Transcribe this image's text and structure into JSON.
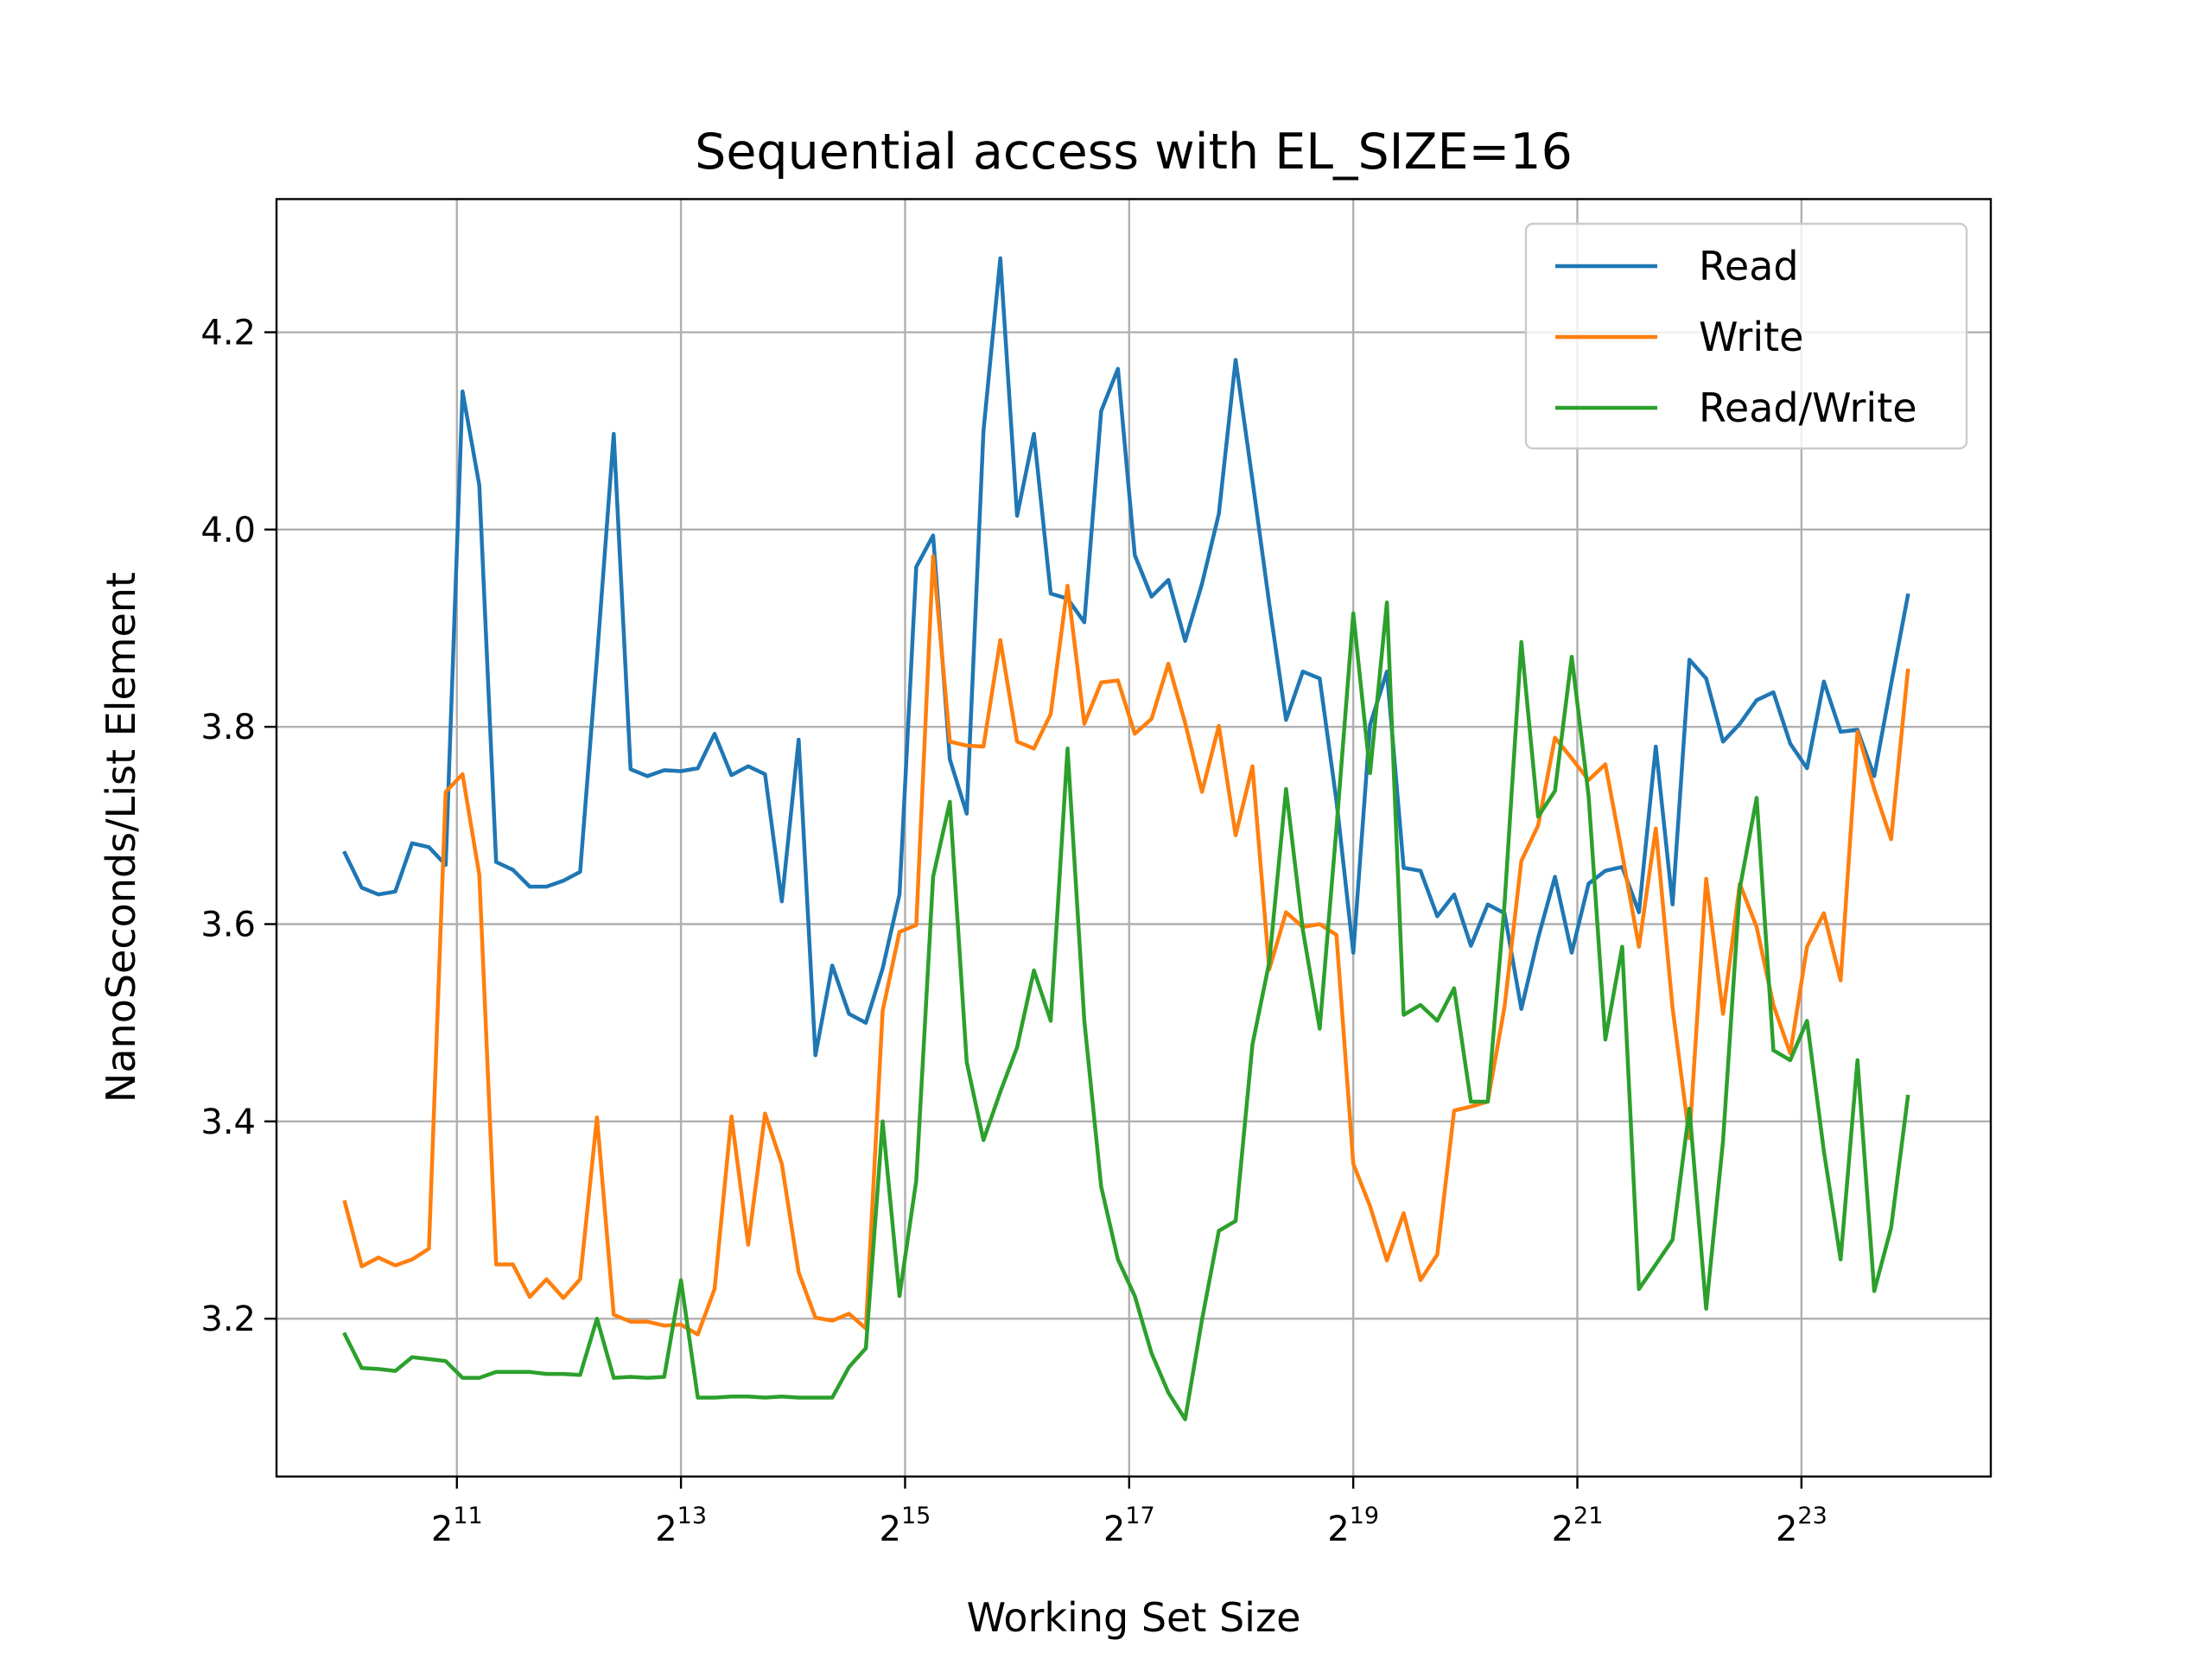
{
  "chart_data": {
    "type": "line",
    "title": "Sequential access with EL_SIZE=16",
    "xlabel": "Working Set Size",
    "ylabel": "NanoSeconds/List Element",
    "x_scale": "log2",
    "x_range_log2": [
      9.39,
      24.69
    ],
    "ylim": [
      3.04,
      4.335
    ],
    "x_ticks": [
      {
        "base": "2",
        "exp": "11",
        "log2": 11
      },
      {
        "base": "2",
        "exp": "13",
        "log2": 13
      },
      {
        "base": "2",
        "exp": "15",
        "log2": 15
      },
      {
        "base": "2",
        "exp": "17",
        "log2": 17
      },
      {
        "base": "2",
        "exp": "19",
        "log2": 19
      },
      {
        "base": "2",
        "exp": "21",
        "log2": 21
      },
      {
        "base": "2",
        "exp": "23",
        "log2": 23
      }
    ],
    "y_ticks": [
      {
        "label": "3.2",
        "value": 3.2
      },
      {
        "label": "3.4",
        "value": 3.4
      },
      {
        "label": "3.6",
        "value": 3.6
      },
      {
        "label": "3.8",
        "value": 3.8
      },
      {
        "label": "4.0",
        "value": 4.0
      },
      {
        "label": "4.2",
        "value": 4.2
      }
    ],
    "grid": true,
    "legend_position": "top-right",
    "x_log2": [
      10.0,
      10.15,
      10.3,
      10.45,
      10.6,
      10.75,
      10.9,
      11.05,
      11.2,
      11.35,
      11.5,
      11.65,
      11.8,
      11.95,
      12.1,
      12.25,
      12.4,
      12.55,
      12.7,
      12.85,
      13.0,
      13.15,
      13.3,
      13.45,
      13.6,
      13.75,
      13.9,
      14.05,
      14.2,
      14.35,
      14.5,
      14.65,
      14.8,
      14.95,
      15.1,
      15.25,
      15.4,
      15.55,
      15.7,
      15.85,
      16.0,
      16.15,
      16.3,
      16.45,
      16.6,
      16.75,
      16.9,
      17.05,
      17.2,
      17.35,
      17.5,
      17.65,
      17.8,
      17.95,
      18.1,
      18.25,
      18.4,
      18.55,
      18.7,
      18.85,
      19.0,
      19.15,
      19.3,
      19.45,
      19.6,
      19.75,
      19.9,
      20.05,
      20.2,
      20.35,
      20.5,
      20.65,
      20.8,
      20.95,
      21.1,
      21.25,
      21.4,
      21.55,
      21.7,
      21.85,
      22.0,
      22.15,
      22.3,
      22.45,
      22.6,
      22.75,
      22.9,
      23.05,
      23.2,
      23.35,
      23.5,
      23.65,
      23.8,
      23.95
    ],
    "series": [
      {
        "name": "Read",
        "color": "#1f77b4",
        "values": [
          3.672,
          3.637,
          3.63,
          3.633,
          3.682,
          3.678,
          3.66,
          4.14,
          4.045,
          3.663,
          3.655,
          3.638,
          3.638,
          3.644,
          3.653,
          3.87,
          4.097,
          3.757,
          3.75,
          3.756,
          3.755,
          3.758,
          3.793,
          3.751,
          3.76,
          3.752,
          3.623,
          3.787,
          3.467,
          3.558,
          3.509,
          3.5,
          3.555,
          3.63,
          3.962,
          3.994,
          3.767,
          3.712,
          4.1,
          4.275,
          4.014,
          4.097,
          3.935,
          3.93,
          3.906,
          4.12,
          4.163,
          3.974,
          3.932,
          3.949,
          3.887,
          3.945,
          4.016,
          4.172,
          4.05,
          3.925,
          3.807,
          3.856,
          3.849,
          3.725,
          3.571,
          3.802,
          3.856,
          3.657,
          3.654,
          3.608,
          3.63,
          3.578,
          3.62,
          3.611,
          3.514,
          3.586,
          3.648,
          3.571,
          3.641,
          3.654,
          3.658,
          3.612,
          3.78,
          3.62,
          3.868,
          3.849,
          3.785,
          3.803,
          3.827,
          3.835,
          3.783,
          3.758,
          3.846,
          3.795,
          3.797,
          3.75,
          3.843,
          3.933
        ]
      },
      {
        "name": "Write",
        "color": "#ff7f0e",
        "values": [
          3.318,
          3.253,
          3.262,
          3.254,
          3.26,
          3.271,
          3.734,
          3.752,
          3.65,
          3.255,
          3.255,
          3.222,
          3.24,
          3.221,
          3.24,
          3.404,
          3.204,
          3.197,
          3.197,
          3.193,
          3.194,
          3.184,
          3.23,
          3.405,
          3.275,
          3.408,
          3.357,
          3.247,
          3.201,
          3.198,
          3.205,
          3.19,
          3.512,
          3.592,
          3.599,
          3.973,
          3.785,
          3.781,
          3.78,
          3.888,
          3.785,
          3.778,
          3.813,
          3.943,
          3.803,
          3.845,
          3.847,
          3.793,
          3.808,
          3.864,
          3.804,
          3.734,
          3.801,
          3.69,
          3.76,
          3.554,
          3.612,
          3.597,
          3.6,
          3.589,
          3.357,
          3.314,
          3.259,
          3.307,
          3.239,
          3.265,
          3.411,
          3.415,
          3.42,
          3.516,
          3.664,
          3.7,
          3.789,
          3.768,
          3.746,
          3.762,
          3.671,
          3.577,
          3.697,
          3.515,
          3.383,
          3.646,
          3.509,
          3.641,
          3.597,
          3.518,
          3.469,
          3.577,
          3.611,
          3.543,
          3.795,
          3.737,
          3.686,
          3.857
        ]
      },
      {
        "name": "Read/Write",
        "color": "#2ca02c",
        "values": [
          3.184,
          3.15,
          3.149,
          3.147,
          3.161,
          3.159,
          3.157,
          3.14,
          3.14,
          3.146,
          3.146,
          3.146,
          3.144,
          3.144,
          3.143,
          3.2,
          3.14,
          3.141,
          3.14,
          3.141,
          3.239,
          3.12,
          3.12,
          3.121,
          3.121,
          3.12,
          3.121,
          3.12,
          3.12,
          3.12,
          3.151,
          3.17,
          3.4,
          3.223,
          3.34,
          3.648,
          3.724,
          3.46,
          3.381,
          3.43,
          3.475,
          3.553,
          3.502,
          3.778,
          3.502,
          3.334,
          3.26,
          3.223,
          3.165,
          3.125,
          3.098,
          3.199,
          3.289,
          3.299,
          3.478,
          3.561,
          3.737,
          3.594,
          3.494,
          3.697,
          3.915,
          3.753,
          3.926,
          3.508,
          3.518,
          3.502,
          3.535,
          3.42,
          3.42,
          3.62,
          3.886,
          3.709,
          3.735,
          3.871,
          3.73,
          3.483,
          3.577,
          3.23,
          3.255,
          3.28,
          3.413,
          3.21,
          3.38,
          3.636,
          3.728,
          3.472,
          3.462,
          3.502,
          3.37,
          3.26,
          3.462,
          3.228,
          3.292,
          3.425
        ]
      }
    ]
  }
}
